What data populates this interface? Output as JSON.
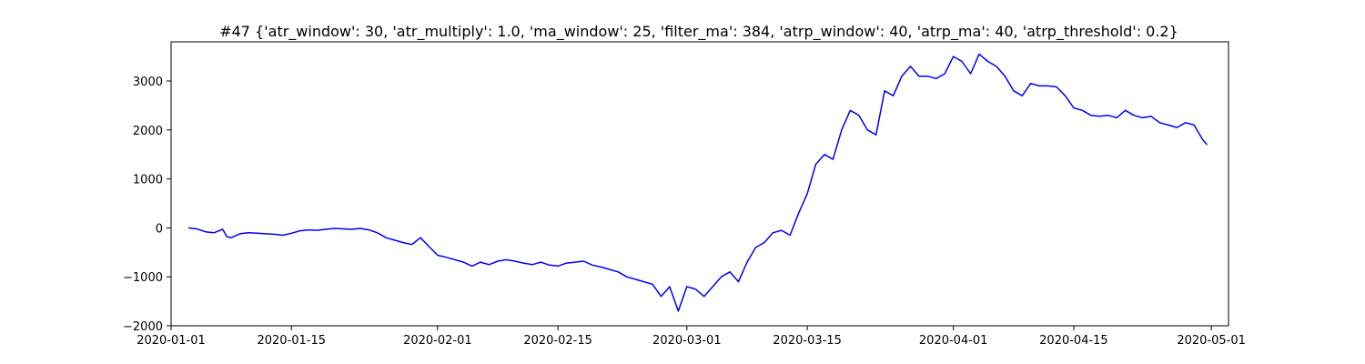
{
  "chart_data": {
    "type": "line",
    "title": "#47 {'atr_window': 30, 'atr_multiply': 1.0, 'ma_window': 25, 'filter_ma': 384, 'atrp_window': 40, 'atrp_ma': 40, 'atrp_threshold': 0.2}",
    "xlabel": "",
    "ylabel": "",
    "grid": false,
    "legend": "none",
    "x_axis": "date",
    "xlim": [
      "2020-01-01",
      "2020-05-03"
    ],
    "ylim": [
      -2000,
      3800
    ],
    "x_ticks": [
      "2020-01-01",
      "2020-01-15",
      "2020-02-01",
      "2020-02-15",
      "2020-03-01",
      "2020-03-15",
      "2020-04-01",
      "2020-04-15",
      "2020-05-01"
    ],
    "y_ticks": [
      -2000,
      -1000,
      0,
      1000,
      2000,
      3000
    ],
    "series": [
      {
        "color": "#0000ff",
        "points": [
          [
            "2020-01-03",
            0
          ],
          [
            "2020-01-04",
            -20
          ],
          [
            "2020-01-05",
            -80
          ],
          [
            "2020-01-06",
            -100
          ],
          [
            "2020-01-07",
            -30
          ],
          [
            "2020-01-07 12:00",
            -180
          ],
          [
            "2020-01-08",
            -200
          ],
          [
            "2020-01-09",
            -120
          ],
          [
            "2020-01-10",
            -100
          ],
          [
            "2020-01-11",
            -110
          ],
          [
            "2020-01-12",
            -120
          ],
          [
            "2020-01-13",
            -130
          ],
          [
            "2020-01-14",
            -150
          ],
          [
            "2020-01-15",
            -110
          ],
          [
            "2020-01-16",
            -60
          ],
          [
            "2020-01-17",
            -40
          ],
          [
            "2020-01-18",
            -50
          ],
          [
            "2020-01-19",
            -30
          ],
          [
            "2020-01-20",
            -10
          ],
          [
            "2020-01-21",
            -20
          ],
          [
            "2020-01-22",
            -30
          ],
          [
            "2020-01-23",
            -10
          ],
          [
            "2020-01-24",
            -40
          ],
          [
            "2020-01-25",
            -100
          ],
          [
            "2020-01-26",
            -200
          ],
          [
            "2020-01-27",
            -250
          ],
          [
            "2020-01-28",
            -300
          ],
          [
            "2020-01-29",
            -340
          ],
          [
            "2020-01-30",
            -200
          ],
          [
            "2020-01-31",
            -380
          ],
          [
            "2020-02-01",
            -560
          ],
          [
            "2020-02-02",
            -600
          ],
          [
            "2020-02-03",
            -650
          ],
          [
            "2020-02-04",
            -700
          ],
          [
            "2020-02-05",
            -780
          ],
          [
            "2020-02-06",
            -700
          ],
          [
            "2020-02-07",
            -750
          ],
          [
            "2020-02-08",
            -680
          ],
          [
            "2020-02-09",
            -650
          ],
          [
            "2020-02-10",
            -680
          ],
          [
            "2020-02-11",
            -720
          ],
          [
            "2020-02-12",
            -750
          ],
          [
            "2020-02-13",
            -700
          ],
          [
            "2020-02-14",
            -760
          ],
          [
            "2020-02-15",
            -780
          ],
          [
            "2020-02-16",
            -720
          ],
          [
            "2020-02-17",
            -700
          ],
          [
            "2020-02-18",
            -680
          ],
          [
            "2020-02-19",
            -760
          ],
          [
            "2020-02-20",
            -800
          ],
          [
            "2020-02-21",
            -850
          ],
          [
            "2020-02-22",
            -900
          ],
          [
            "2020-02-23",
            -1000
          ],
          [
            "2020-02-24",
            -1050
          ],
          [
            "2020-02-25",
            -1100
          ],
          [
            "2020-02-26",
            -1150
          ],
          [
            "2020-02-27",
            -1400
          ],
          [
            "2020-02-28",
            -1200
          ],
          [
            "2020-02-29",
            -1700
          ],
          [
            "2020-03-01",
            -1200
          ],
          [
            "2020-03-02",
            -1250
          ],
          [
            "2020-03-03",
            -1400
          ],
          [
            "2020-03-04",
            -1200
          ],
          [
            "2020-03-05",
            -1000
          ],
          [
            "2020-03-06",
            -900
          ],
          [
            "2020-03-07",
            -1100
          ],
          [
            "2020-03-08",
            -700
          ],
          [
            "2020-03-09",
            -400
          ],
          [
            "2020-03-10",
            -300
          ],
          [
            "2020-03-11",
            -100
          ],
          [
            "2020-03-12",
            -50
          ],
          [
            "2020-03-13",
            -150
          ],
          [
            "2020-03-14",
            300
          ],
          [
            "2020-03-15",
            700
          ],
          [
            "2020-03-16",
            1300
          ],
          [
            "2020-03-17",
            1500
          ],
          [
            "2020-03-18",
            1400
          ],
          [
            "2020-03-19",
            2000
          ],
          [
            "2020-03-20",
            2400
          ],
          [
            "2020-03-21",
            2300
          ],
          [
            "2020-03-22",
            2000
          ],
          [
            "2020-03-23",
            1900
          ],
          [
            "2020-03-24",
            2800
          ],
          [
            "2020-03-25",
            2700
          ],
          [
            "2020-03-26",
            3100
          ],
          [
            "2020-03-27",
            3300
          ],
          [
            "2020-03-28",
            3100
          ],
          [
            "2020-03-29",
            3100
          ],
          [
            "2020-03-30",
            3050
          ],
          [
            "2020-03-31",
            3150
          ],
          [
            "2020-04-01",
            3500
          ],
          [
            "2020-04-02",
            3400
          ],
          [
            "2020-04-03",
            3150
          ],
          [
            "2020-04-04",
            3550
          ],
          [
            "2020-04-05",
            3400
          ],
          [
            "2020-04-06",
            3300
          ],
          [
            "2020-04-07",
            3100
          ],
          [
            "2020-04-08",
            2800
          ],
          [
            "2020-04-09",
            2700
          ],
          [
            "2020-04-10",
            2950
          ],
          [
            "2020-04-11",
            2900
          ],
          [
            "2020-04-12",
            2900
          ],
          [
            "2020-04-13",
            2880
          ],
          [
            "2020-04-14",
            2700
          ],
          [
            "2020-04-15",
            2450
          ],
          [
            "2020-04-16",
            2400
          ],
          [
            "2020-04-17",
            2300
          ],
          [
            "2020-04-18",
            2280
          ],
          [
            "2020-04-19",
            2300
          ],
          [
            "2020-04-20",
            2250
          ],
          [
            "2020-04-21",
            2400
          ],
          [
            "2020-04-22",
            2300
          ],
          [
            "2020-04-23",
            2250
          ],
          [
            "2020-04-24",
            2280
          ],
          [
            "2020-04-25",
            2150
          ],
          [
            "2020-04-26",
            2100
          ],
          [
            "2020-04-27",
            2050
          ],
          [
            "2020-04-28",
            2150
          ],
          [
            "2020-04-29",
            2100
          ],
          [
            "2020-04-30",
            1800
          ],
          [
            "2020-04-30 12:00",
            1700
          ]
        ]
      }
    ]
  }
}
